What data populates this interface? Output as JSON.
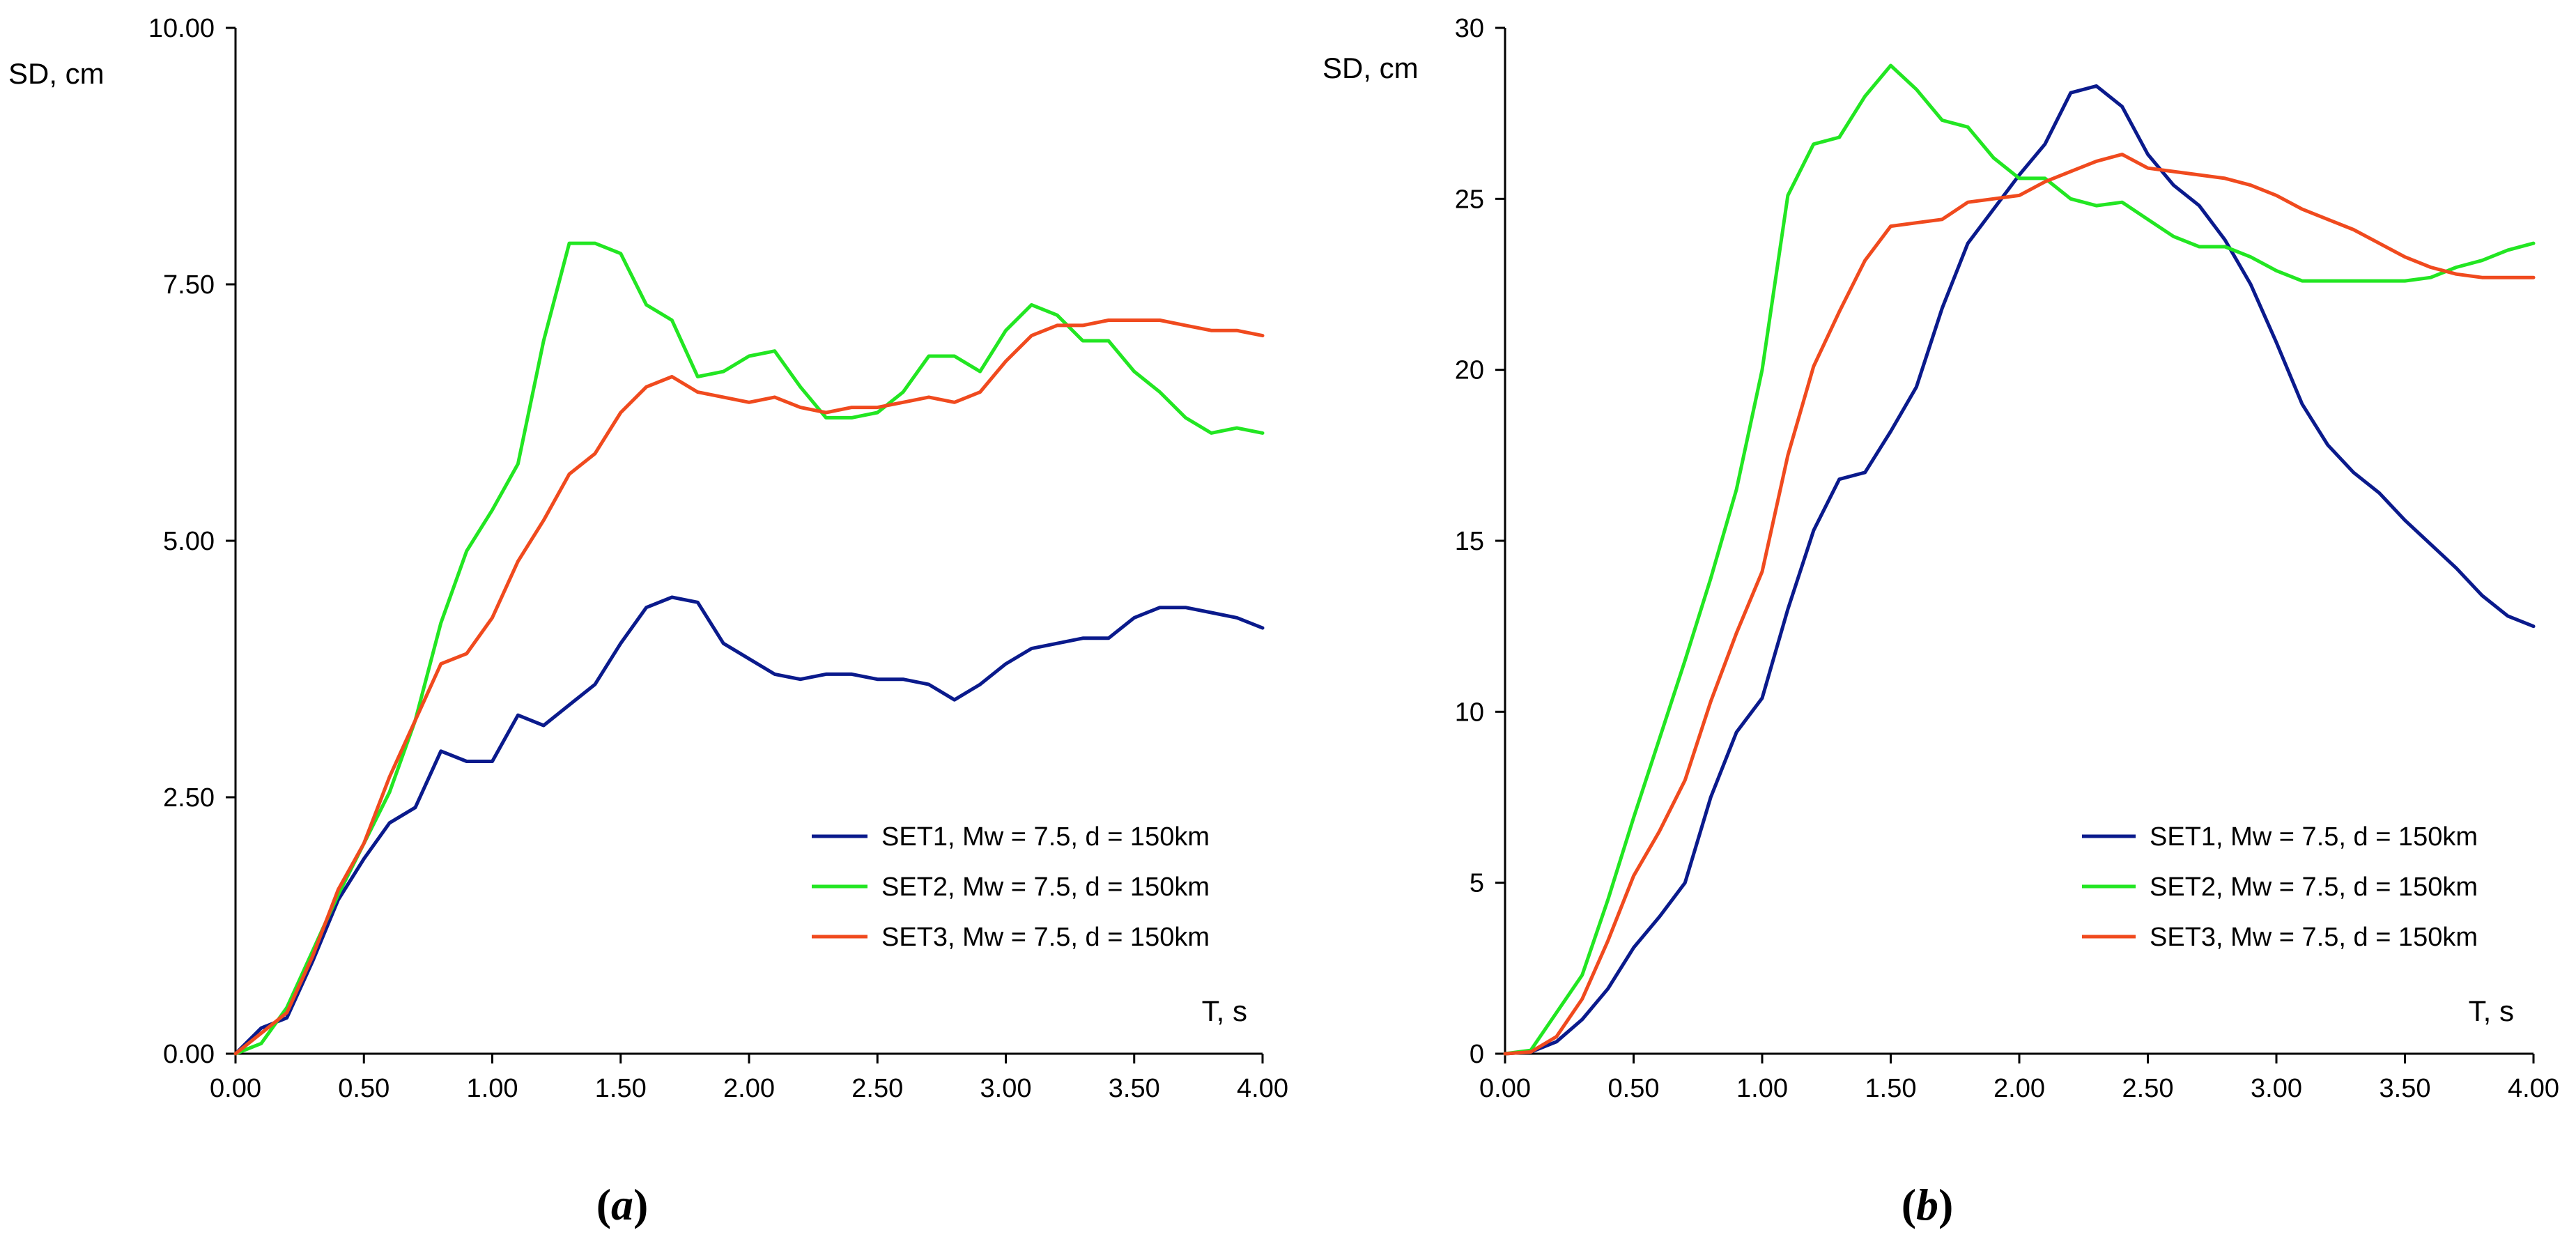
{
  "chart_data": [
    {
      "type": "line",
      "panel_label_open": "(",
      "panel_label_letter": "a",
      "panel_label_close": ")",
      "ylabel": "SD, cm",
      "xlabel": "T, s",
      "xlim": [
        0,
        4
      ],
      "ylim": [
        0,
        10
      ],
      "xticks": [
        0,
        0.5,
        1,
        1.5,
        2,
        2.5,
        3,
        3.5,
        4
      ],
      "xtick_labels": [
        "0.00",
        "0.50",
        "1.00",
        "1.50",
        "2.00",
        "2.50",
        "3.00",
        "3.50",
        "4.00"
      ],
      "yticks": [
        0,
        2.5,
        5,
        7.5,
        10
      ],
      "ytick_labels": [
        "0.00",
        "2.50",
        "5.00",
        "7.50",
        "10.00"
      ],
      "grid": false,
      "legend_position": "bottom-right",
      "x": [
        0,
        0.1,
        0.2,
        0.3,
        0.4,
        0.5,
        0.6,
        0.7,
        0.8,
        0.9,
        1.0,
        1.1,
        1.2,
        1.3,
        1.4,
        1.5,
        1.6,
        1.7,
        1.8,
        1.9,
        2.0,
        2.1,
        2.2,
        2.3,
        2.4,
        2.5,
        2.6,
        2.7,
        2.8,
        2.9,
        3.0,
        3.1,
        3.2,
        3.3,
        3.4,
        3.5,
        3.6,
        3.7,
        3.8,
        3.9,
        4.0
      ],
      "series": [
        {
          "name": "SET1, Mw = 7.5, d = 150km",
          "color": "#0a1a8c",
          "values": [
            0,
            0.25,
            0.35,
            0.9,
            1.5,
            1.9,
            2.25,
            2.4,
            2.95,
            2.85,
            2.85,
            3.3,
            3.2,
            3.4,
            3.6,
            4.0,
            4.35,
            4.45,
            4.4,
            4.0,
            3.85,
            3.7,
            3.65,
            3.7,
            3.7,
            3.65,
            3.65,
            3.6,
            3.45,
            3.6,
            3.8,
            3.95,
            4.0,
            4.05,
            4.05,
            4.25,
            4.35,
            4.35,
            4.3,
            4.25,
            4.15
          ]
        },
        {
          "name": "SET2, Mw = 7.5, d = 150km",
          "color": "#22e622",
          "values": [
            0,
            0.1,
            0.45,
            1.0,
            1.55,
            2.05,
            2.55,
            3.25,
            4.2,
            4.9,
            5.3,
            5.75,
            6.95,
            7.9,
            7.9,
            7.8,
            7.3,
            7.15,
            6.6,
            6.65,
            6.8,
            6.85,
            6.5,
            6.2,
            6.2,
            6.25,
            6.45,
            6.8,
            6.8,
            6.65,
            7.05,
            7.3,
            7.2,
            6.95,
            6.95,
            6.65,
            6.45,
            6.2,
            6.05,
            6.1,
            6.05
          ]
        },
        {
          "name": "SET3, Mw = 7.5, d = 150km",
          "color": "#f04a1e",
          "values": [
            0,
            0.2,
            0.4,
            0.95,
            1.6,
            2.05,
            2.7,
            3.25,
            3.8,
            3.9,
            4.25,
            4.8,
            5.2,
            5.65,
            5.85,
            6.25,
            6.5,
            6.6,
            6.45,
            6.4,
            6.35,
            6.4,
            6.3,
            6.25,
            6.3,
            6.3,
            6.35,
            6.4,
            6.35,
            6.45,
            6.75,
            7.0,
            7.1,
            7.1,
            7.15,
            7.15,
            7.15,
            7.1,
            7.05,
            7.05,
            7.0
          ]
        }
      ]
    },
    {
      "type": "line",
      "panel_label_open": "(",
      "panel_label_letter": "b",
      "panel_label_close": ")",
      "ylabel": "SD, cm",
      "xlabel": "T, s",
      "xlim": [
        0,
        4
      ],
      "ylim": [
        0,
        30
      ],
      "xticks": [
        0,
        0.5,
        1,
        1.5,
        2,
        2.5,
        3,
        3.5,
        4
      ],
      "xtick_labels": [
        "0.00",
        "0.50",
        "1.00",
        "1.50",
        "2.00",
        "2.50",
        "3.00",
        "3.50",
        "4.00"
      ],
      "yticks": [
        0,
        5,
        10,
        15,
        20,
        25,
        30
      ],
      "ytick_labels": [
        "0",
        "5",
        "10",
        "15",
        "20",
        "25",
        "30"
      ],
      "grid": false,
      "legend_position": "bottom-right",
      "x": [
        0,
        0.1,
        0.2,
        0.3,
        0.4,
        0.5,
        0.6,
        0.7,
        0.8,
        0.9,
        1.0,
        1.1,
        1.2,
        1.3,
        1.4,
        1.5,
        1.6,
        1.7,
        1.8,
        1.9,
        2.0,
        2.1,
        2.2,
        2.3,
        2.4,
        2.5,
        2.6,
        2.7,
        2.8,
        2.9,
        3.0,
        3.1,
        3.2,
        3.3,
        3.4,
        3.5,
        3.6,
        3.7,
        3.8,
        3.9,
        4.0
      ],
      "series": [
        {
          "name": "SET1, Mw = 7.5, d = 150km",
          "color": "#0a1a8c",
          "values": [
            0,
            0.05,
            0.35,
            1.0,
            1.9,
            3.1,
            4.0,
            5.0,
            7.5,
            9.4,
            10.4,
            13.0,
            15.3,
            16.8,
            17.0,
            18.2,
            19.5,
            21.8,
            23.7,
            24.7,
            25.7,
            26.6,
            28.1,
            28.3,
            27.7,
            26.3,
            25.4,
            24.8,
            23.8,
            22.5,
            20.8,
            19.0,
            17.8,
            17.0,
            16.4,
            15.6,
            14.9,
            14.2,
            13.4,
            12.8,
            12.5
          ]
        },
        {
          "name": "SET2, Mw = 7.5, d = 150km",
          "color": "#22e622",
          "values": [
            0,
            0.1,
            1.2,
            2.3,
            4.5,
            6.9,
            9.2,
            11.5,
            13.9,
            16.5,
            20.0,
            25.1,
            26.6,
            26.8,
            28.0,
            28.9,
            28.2,
            27.3,
            27.1,
            26.2,
            25.6,
            25.6,
            25.0,
            24.8,
            24.9,
            24.4,
            23.9,
            23.6,
            23.6,
            23.3,
            22.9,
            22.6,
            22.6,
            22.6,
            22.6,
            22.6,
            22.7,
            23.0,
            23.2,
            23.5,
            23.7
          ]
        },
        {
          "name": "SET3, Mw = 7.5, d = 150km",
          "color": "#f04a1e",
          "values": [
            0,
            0.05,
            0.5,
            1.6,
            3.3,
            5.2,
            6.5,
            8.0,
            10.3,
            12.3,
            14.1,
            17.5,
            20.1,
            21.7,
            23.2,
            24.2,
            24.3,
            24.4,
            24.9,
            25.0,
            25.1,
            25.5,
            25.8,
            26.1,
            26.3,
            25.9,
            25.8,
            25.7,
            25.6,
            25.4,
            25.1,
            24.7,
            24.4,
            24.1,
            23.7,
            23.3,
            23.0,
            22.8,
            22.7,
            22.7,
            22.7
          ]
        }
      ]
    }
  ]
}
